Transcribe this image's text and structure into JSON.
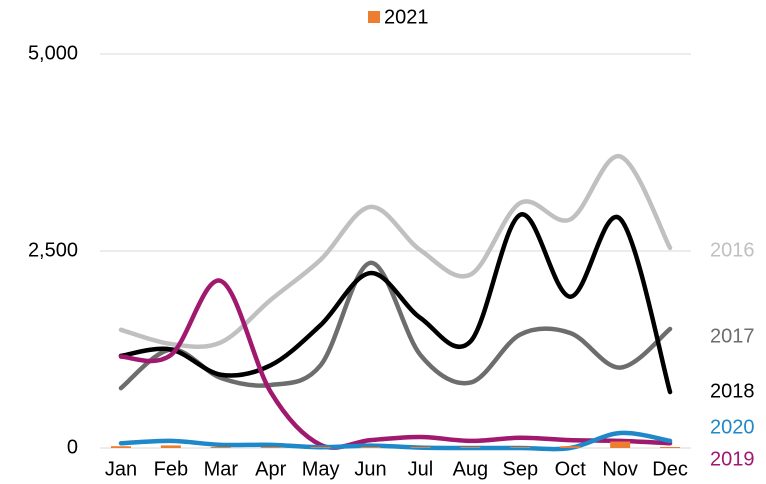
{
  "chart_data": {
    "type": "line",
    "categories": [
      "Jan",
      "Feb",
      "Mar",
      "Apr",
      "May",
      "Jun",
      "Jul",
      "Aug",
      "Sep",
      "Oct",
      "Nov",
      "Dec"
    ],
    "series": [
      {
        "name": "2016",
        "color": "#c0c0c0",
        "values": [
          1500,
          1320,
          1340,
          1880,
          2390,
          3060,
          2510,
          2200,
          3110,
          2900,
          3700,
          2540
        ]
      },
      {
        "name": "2017",
        "color": "#6d6d6d",
        "values": [
          760,
          1250,
          890,
          800,
          1050,
          2350,
          1180,
          830,
          1440,
          1460,
          1020,
          1510
        ]
      },
      {
        "name": "2018",
        "color": "#000000",
        "values": [
          1170,
          1250,
          930,
          1050,
          1560,
          2220,
          1650,
          1350,
          2960,
          1920,
          2910,
          710
        ]
      },
      {
        "name": "2019",
        "color": "#a0196e",
        "values": [
          1160,
          1180,
          2120,
          710,
          40,
          100,
          140,
          90,
          130,
          100,
          90,
          60
        ]
      },
      {
        "name": "2020",
        "color": "#1f88c8",
        "values": [
          60,
          90,
          40,
          40,
          10,
          30,
          5,
          0,
          0,
          0,
          190,
          90
        ]
      },
      {
        "name": "2021",
        "color": "#ed7d31",
        "type": "bar",
        "values": [
          10,
          20,
          0,
          0,
          0,
          0,
          0,
          0,
          0,
          10,
          70,
          0
        ]
      }
    ],
    "ylim": [
      0,
      5000
    ],
    "yticks": [
      0,
      {
        "value": 2500,
        "label": "2,500"
      },
      {
        "value": 5000,
        "label": "5,000"
      }
    ],
    "grid": true
  }
}
